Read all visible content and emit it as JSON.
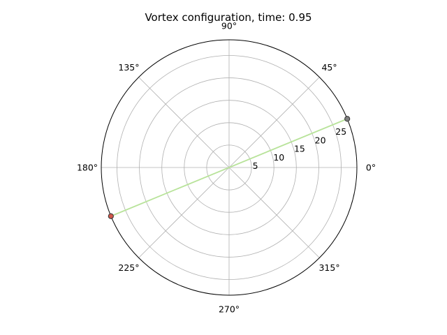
{
  "chart_data": {
    "type": "scatter",
    "projection": "polar",
    "title": "Vortex configuration, time: 0.95",
    "theta_ticks_deg": [
      0,
      45,
      90,
      135,
      180,
      225,
      270,
      315
    ],
    "theta_tick_labels": [
      "0°",
      "45°",
      "90°",
      "135°",
      "180°",
      "225°",
      "270°",
      "315°"
    ],
    "r_ticks": [
      5,
      10,
      15,
      20,
      25
    ],
    "r_tick_labels": [
      "5",
      "10",
      "15",
      "20",
      "25"
    ],
    "r_label_angle_deg": 22.5,
    "rlim": [
      0,
      28.5
    ],
    "grid": true,
    "connector_color": "#b8e39a",
    "points": [
      {
        "theta_deg": 22.4,
        "r": 28.5,
        "color": "#7f7f7f"
      },
      {
        "theta_deg": 202.4,
        "r": 28.5,
        "color": "#d0574a"
      }
    ]
  }
}
